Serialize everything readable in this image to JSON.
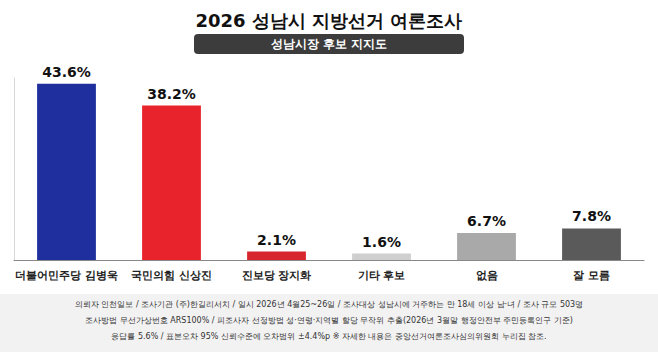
{
  "chart_data": {
    "type": "bar",
    "title": "2026 성남시 지방선거 여론조사",
    "subtitle": "성남시장 후보 지지도",
    "categories": [
      "더불어민주당 김병욱",
      "국민의힘 신상진",
      "진보당 장지화",
      "기타 후보",
      "없음",
      "잘 모름"
    ],
    "values": [
      43.6,
      38.2,
      2.1,
      1.6,
      6.7,
      7.8
    ],
    "value_labels": [
      "43.6%",
      "38.2%",
      "2.1%",
      "1.6%",
      "6.7%",
      "7.8%"
    ],
    "colors": [
      "#1f2f9e",
      "#e8232b",
      "#d8262e",
      "#cfcfcf",
      "#a9a9a9",
      "#5a5a5a"
    ],
    "ylim": [
      0,
      45
    ],
    "tick_labels": "x",
    "grid": false,
    "data_labels": true,
    "notes": [
      "의뢰자 인천일보 / 조사기관 (주)한길리서치 / 일시 2026년 4월25~26일 / 조사대상 성남시에 거주하는 만 18세 이상 남·녀 / 조사 규모 503명",
      "조사방법 무선가상번호 ARS100% / 피조사자 선정방법 성·연령·지역별 할당 무작위 추출(2026년 3월말 행정안전부 주민등록인구 기준)",
      "응답률 5.6% / 표본오차 95% 신뢰수준에 오차범위 ±4.4%p ※ 자세한 내용은 중앙선거여론조사심의위원회 누리집 참조."
    ]
  }
}
